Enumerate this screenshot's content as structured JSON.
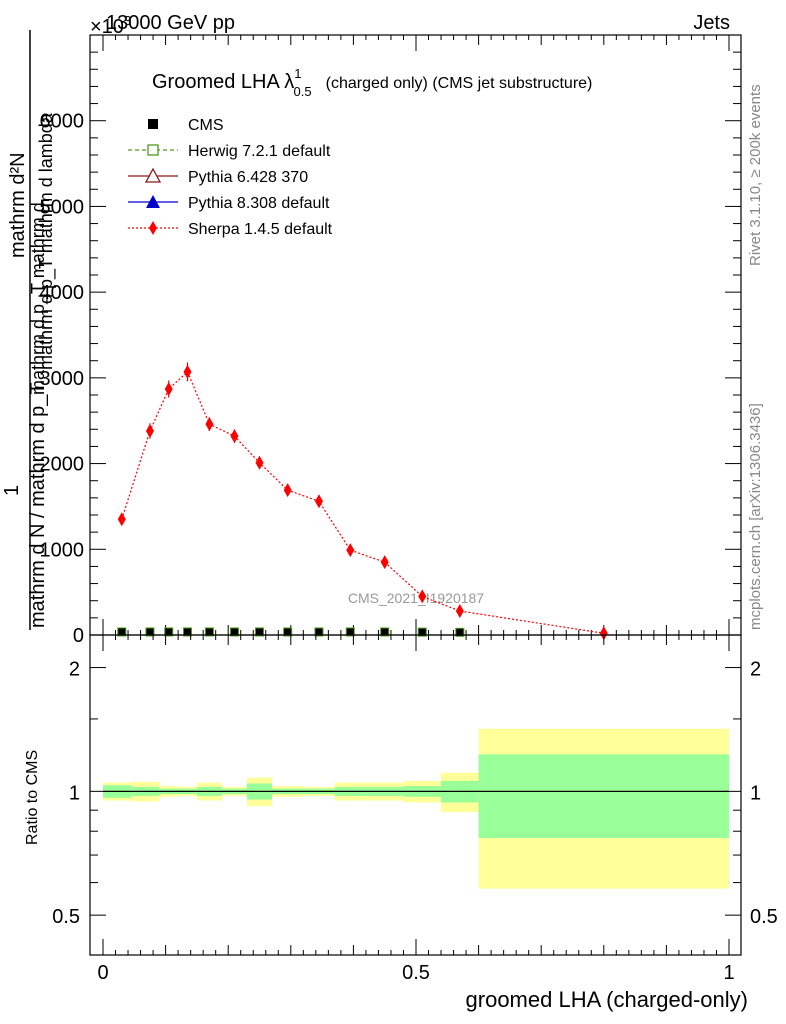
{
  "header": {
    "energy": "13000 GeV pp",
    "category": "Jets",
    "exponent": "×10",
    "exponent_power": "3",
    "rivet": "Rivet 3.1.10, ≥ 200k events",
    "mcplots": "mcplots.cern.ch [arXiv:1306.3436]",
    "watermark": "CMS_2021_I1920187"
  },
  "chart_data": [
    {
      "type": "scatter",
      "panel": "main",
      "title": "Groomed LHA λ",
      "title_sup": "1",
      "title_sub": "0.5",
      "title_suffix": "(charged only) (CMS jet substructure)",
      "ylabel_upper": "mathrm d²N",
      "ylabel_upper_sub": "mathrm d p_T mathrm d lambda",
      "ylabel_one": "1",
      "ylabel_lower": "mathrm d N / mathrm d p_T",
      "ylabel_lower_extra": "mathrm d p_T mathrm d",
      "xlim": [
        -0.02,
        1.02
      ],
      "ylim": [
        0,
        7000
      ],
      "yticks": [
        0,
        1000,
        2000,
        3000,
        4000,
        5000,
        6000
      ],
      "ytick_labels": [
        "0",
        "1000",
        "2000",
        "3000",
        "4000",
        "5000",
        "6000"
      ],
      "legend": [
        {
          "name": "CMS",
          "color": "#000000",
          "marker": "square-filled",
          "line": "none"
        },
        {
          "name": "Herwig 7.2.1 default",
          "color": "#4d9a1a",
          "marker": "square-open",
          "line": "dashed"
        },
        {
          "name": "Pythia 6.428 370",
          "color": "#8b1a1a",
          "marker": "triangle-open",
          "line": "solid"
        },
        {
          "name": "Pythia 8.308 default",
          "color": "#0000cc",
          "marker": "triangle-filled",
          "line": "solid"
        },
        {
          "name": "Sherpa 1.4.5 default",
          "color": "#ff0000",
          "marker": "diamond-filled",
          "line": "dotted"
        }
      ],
      "x": [
        0.03,
        0.075,
        0.105,
        0.135,
        0.17,
        0.21,
        0.25,
        0.295,
        0.345,
        0.395,
        0.45,
        0.51,
        0.57,
        0.8
      ],
      "series": [
        {
          "name": "CMS",
          "values": [
            12,
            12,
            12,
            12,
            12,
            12,
            12,
            12,
            12,
            12,
            12,
            10,
            8,
            2
          ]
        },
        {
          "name": "Sherpa 1.4.5 default",
          "values": [
            1350,
            2380,
            2870,
            3070,
            2460,
            2320,
            2010,
            1690,
            1560,
            990,
            850,
            450,
            280,
            20
          ],
          "errors": [
            60,
            90,
            100,
            110,
            80,
            80,
            70,
            60,
            60,
            40,
            40,
            30,
            20,
            5
          ]
        }
      ]
    },
    {
      "type": "area",
      "panel": "ratio",
      "ylabel": "Ratio to CMS",
      "ylim": [
        0.4,
        2.4
      ],
      "yscale": "log",
      "yticks": [
        0.5,
        1,
        2
      ],
      "ytick_labels": [
        "0.5",
        "1",
        "2"
      ],
      "xticks": [
        0,
        0.5,
        1
      ],
      "xtick_labels": [
        "0",
        "0.5",
        "1"
      ],
      "xlabel": "groomed LHA (charged-only)",
      "bins": [
        [
          0.0,
          0.045,
          0.035,
          0.05
        ],
        [
          0.045,
          0.09,
          0.025,
          0.055
        ],
        [
          0.09,
          0.12,
          0.015,
          0.03
        ],
        [
          0.12,
          0.15,
          0.015,
          0.025
        ],
        [
          0.15,
          0.19,
          0.025,
          0.05
        ],
        [
          0.19,
          0.23,
          0.015,
          0.025
        ],
        [
          0.23,
          0.27,
          0.045,
          0.08
        ],
        [
          0.27,
          0.32,
          0.015,
          0.03
        ],
        [
          0.32,
          0.37,
          0.015,
          0.025
        ],
        [
          0.37,
          0.42,
          0.025,
          0.05
        ],
        [
          0.42,
          0.48,
          0.025,
          0.05
        ],
        [
          0.48,
          0.54,
          0.03,
          0.06
        ],
        [
          0.54,
          0.6,
          0.06,
          0.11
        ],
        [
          0.6,
          1.0,
          0.23,
          0.42
        ]
      ]
    }
  ]
}
